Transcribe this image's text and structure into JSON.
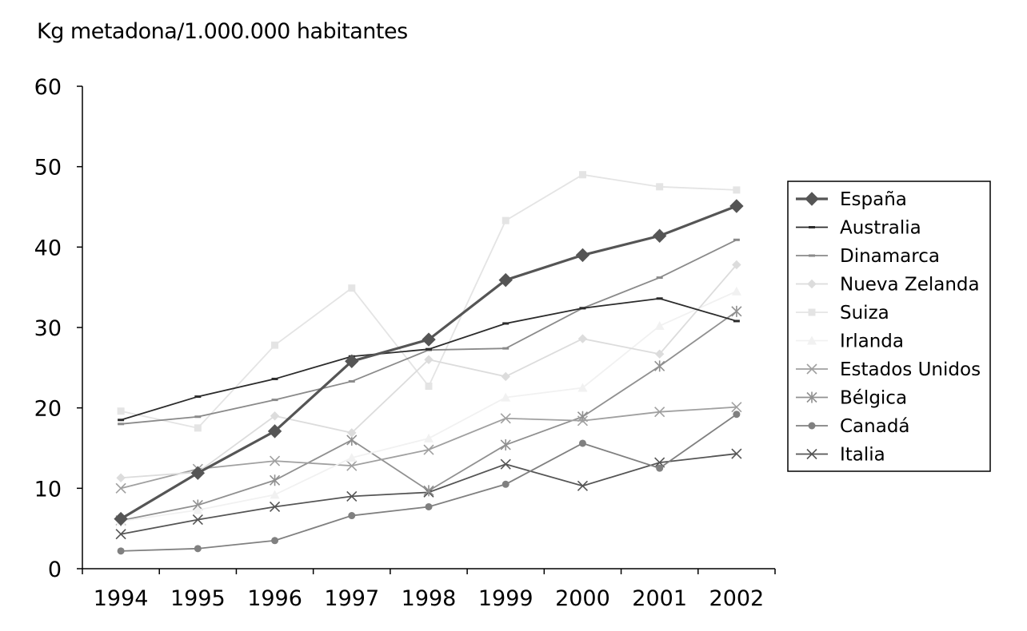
{
  "chart_data": {
    "type": "line",
    "title": "",
    "xlabel": "",
    "ylabel": "Kg metadona/1.000.000 habitantes",
    "ylim": [
      0,
      60
    ],
    "yticks": [
      0,
      10,
      20,
      30,
      40,
      50,
      60
    ],
    "categories": [
      "1994",
      "1995",
      "1996",
      "1997",
      "1998",
      "1999",
      "2000",
      "2001",
      "2002"
    ],
    "grid": false,
    "legend_position": "right",
    "series": [
      {
        "name": "España",
        "color": "#555555",
        "marker": "diamond",
        "values": [
          6.2,
          11.9,
          17.1,
          25.8,
          28.5,
          35.9,
          39.0,
          41.4,
          45.1
        ]
      },
      {
        "name": "Australia",
        "color": "#2b2b2b",
        "marker": "dash",
        "values": [
          18.5,
          21.4,
          23.6,
          26.4,
          27.3,
          30.5,
          32.4,
          33.6,
          30.8
        ]
      },
      {
        "name": "Dinamarca",
        "color": "#8a8a8a",
        "marker": "dash",
        "values": [
          18.0,
          18.9,
          21.0,
          23.3,
          27.2,
          27.4,
          32.4,
          36.2,
          40.9
        ]
      },
      {
        "name": "Nueva Zelanda",
        "color": "#dcdcdc",
        "marker": "diamond-small",
        "values": [
          11.3,
          12.0,
          19.0,
          16.9,
          26.0,
          23.9,
          28.6,
          26.7,
          37.8
        ]
      },
      {
        "name": "Suiza",
        "color": "#e4e4e4",
        "marker": "square",
        "values": [
          19.6,
          17.5,
          27.8,
          34.9,
          22.7,
          43.3,
          49.0,
          47.5,
          47.1
        ]
      },
      {
        "name": "Irlanda",
        "color": "#f1f1f1",
        "marker": "triangle",
        "values": [
          5.9,
          7.3,
          9.2,
          13.8,
          16.2,
          21.3,
          22.5,
          30.2,
          34.5
        ]
      },
      {
        "name": "Estados Unidos",
        "color": "#a0a0a0",
        "marker": "x",
        "values": [
          10.0,
          12.4,
          13.4,
          12.8,
          14.8,
          18.7,
          18.4,
          19.5,
          20.1
        ]
      },
      {
        "name": "Bélgica",
        "color": "#909090",
        "marker": "asterisk",
        "values": [
          6.0,
          7.9,
          11.0,
          16.0,
          9.7,
          15.4,
          18.9,
          25.2,
          32.0
        ]
      },
      {
        "name": "Canadá",
        "color": "#808080",
        "marker": "circle",
        "values": [
          2.2,
          2.5,
          3.5,
          6.6,
          7.7,
          10.5,
          15.6,
          12.5,
          19.2
        ]
      },
      {
        "name": "Italia",
        "color": "#555555",
        "marker": "x",
        "values": [
          4.3,
          6.1,
          7.7,
          9.0,
          9.5,
          13.0,
          10.3,
          13.2,
          14.3
        ]
      }
    ]
  }
}
